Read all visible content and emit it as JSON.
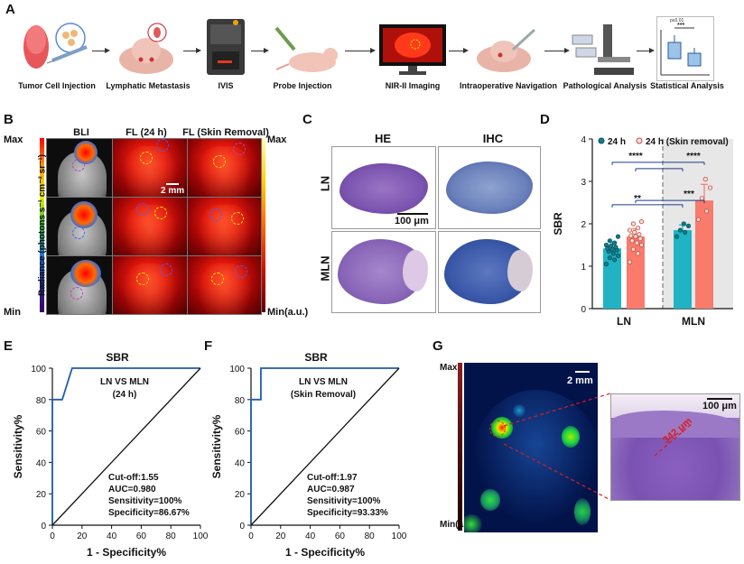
{
  "panel_labels": {
    "a": "A",
    "b": "B",
    "c": "C",
    "d": "D",
    "e": "E",
    "f": "F",
    "g": "G"
  },
  "workflow": [
    {
      "label": "Tumor Cell Injection",
      "icon": "tongue-syringe-icon"
    },
    {
      "label": "Lymphatic Metastasis",
      "icon": "mouse-lymph-icon"
    },
    {
      "label": "IVIS",
      "icon": "ivis-machine-icon"
    },
    {
      "label": "Probe Injection",
      "icon": "mouse-syringe-icon"
    },
    {
      "label": "NIR-II Imaging",
      "icon": "monitor-icon"
    },
    {
      "label": "Intraoperative Navigation",
      "icon": "scalpel-mouse-icon"
    },
    {
      "label": "Pathological Analysis",
      "icon": "microscope-icon"
    },
    {
      "label": "Statistical Analysis",
      "icon": "boxplot-icon"
    }
  ],
  "workflow_inset": {
    "p_value": "p≤0.01",
    "stars": "***"
  },
  "panel_b": {
    "columns": [
      "BLI",
      "FL (24 h)",
      "FL (Skin Removal)"
    ],
    "left_max": "Max",
    "left_min": "Min",
    "right_max": "Max",
    "right_min": "Min(a.u.)",
    "radiance_label": "Radiance (photons s⁻¹ cm⁻² sr⁻¹)",
    "scale_bar": "2 mm",
    "colors": {
      "bli_hot": "#ff2a00",
      "fl_bg": "#d3120a"
    }
  },
  "panel_c": {
    "cols": [
      "HE",
      "IHC"
    ],
    "rows": [
      "LN",
      "MLN"
    ],
    "scale_bar": "100 μm"
  },
  "panel_g": {
    "max": "Max",
    "min": "Min(a.u.)",
    "scale_bar_left": "2 mm",
    "scale_bar_right": "100 μm",
    "measure": "342 μm"
  },
  "chart_data": [
    {
      "id": "D",
      "type": "bar",
      "categories": [
        "LN",
        "MLN"
      ],
      "series": [
        {
          "name": "24 h",
          "color": "#1fb3c4",
          "values": [
            1.42,
            1.85
          ],
          "errors": [
            0.15,
            0.12
          ],
          "points": [
            [
              1.05,
              1.15,
              1.2,
              1.25,
              1.3,
              1.35,
              1.38,
              1.4,
              1.42,
              1.45,
              1.48,
              1.5,
              1.55,
              1.6,
              1.7
            ],
            [
              1.7,
              1.8,
              1.85,
              1.95,
              2.0
            ]
          ]
        },
        {
          "name": "24 h (Skin removal)",
          "color": "#fa7a6c",
          "values": [
            1.7,
            2.55
          ],
          "errors": [
            0.18,
            0.38
          ],
          "points": [
            [
              1.1,
              1.3,
              1.4,
              1.5,
              1.55,
              1.6,
              1.65,
              1.7,
              1.72,
              1.75,
              1.8,
              1.85,
              1.9,
              2.0,
              2.05
            ],
            [
              2.1,
              2.3,
              2.6,
              2.85,
              3.05
            ]
          ]
        }
      ],
      "ylabel": "SBR",
      "xlabel": "",
      "ylim": [
        0,
        4
      ],
      "yticks": [
        0,
        1,
        2,
        3,
        4
      ],
      "significance": [
        {
          "label": "**",
          "pair": "LN 24 h vs MLN 24 h"
        },
        {
          "label": "***",
          "pair": "LN Skin removal vs MLN Skin removal"
        },
        {
          "label": "****",
          "pair": "LN 24 h vs MLN Skin removal"
        },
        {
          "label": "****",
          "pair": "LN Skin removal vs MLN 24 h"
        }
      ],
      "legend_position": "top"
    },
    {
      "id": "E",
      "type": "line",
      "title": "SBR",
      "xlabel": "1 - Specificity%",
      "ylabel": "Sensitivity%",
      "xlim": [
        0,
        100
      ],
      "ylim": [
        0,
        100
      ],
      "xticks": [
        0,
        20,
        40,
        60,
        80,
        100
      ],
      "yticks": [
        0,
        20,
        40,
        60,
        80,
        100
      ],
      "series": [
        {
          "name": "ROC",
          "color": "#1f5fa8",
          "x": [
            0,
            0,
            6.67,
            13.33,
            100
          ],
          "y": [
            0,
            80,
            80,
            100,
            100
          ]
        },
        {
          "name": "reference",
          "color": "#111111",
          "x": [
            0,
            100
          ],
          "y": [
            0,
            100
          ]
        }
      ],
      "annotation": {
        "heading": "LN VS MLN",
        "sub": "(24 h)",
        "stats": [
          "Cut-off:1.55",
          "AUC=0.980",
          "Sensitivity=100%",
          "Specificity=86.67%"
        ]
      }
    },
    {
      "id": "F",
      "type": "line",
      "title": "SBR",
      "xlabel": "1 - Specificity%",
      "ylabel": "Sensitivity%",
      "xlim": [
        0,
        100
      ],
      "ylim": [
        0,
        100
      ],
      "xticks": [
        0,
        20,
        40,
        60,
        80,
        100
      ],
      "yticks": [
        0,
        20,
        40,
        60,
        80,
        100
      ],
      "series": [
        {
          "name": "ROC",
          "color": "#1f5fa8",
          "x": [
            0,
            0,
            6.67,
            6.67,
            100
          ],
          "y": [
            0,
            80,
            80,
            100,
            100
          ]
        },
        {
          "name": "reference",
          "color": "#111111",
          "x": [
            0,
            100
          ],
          "y": [
            0,
            100
          ]
        }
      ],
      "annotation": {
        "heading": "LN VS MLN",
        "sub": "(Skin Removal)",
        "stats": [
          "Cut-off:1.97",
          "AUC=0.987",
          "Sensitivity=100%",
          "Specificity=93.33%"
        ]
      }
    }
  ]
}
